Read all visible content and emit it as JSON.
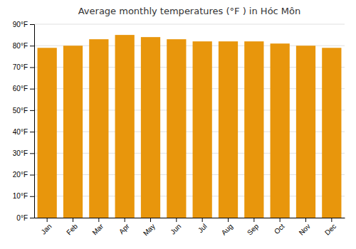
{
  "chart_data": {
    "type": "bar",
    "title": "Average monthly temperatures (°F ) in Hóc Môn",
    "categories": [
      "Jan",
      "Feb",
      "Mar",
      "Apr",
      "May",
      "Jun",
      "Jul",
      "Aug",
      "Sep",
      "Oct",
      "Nov",
      "Dec"
    ],
    "values": [
      79,
      80,
      83,
      85,
      84,
      83,
      82,
      82,
      82,
      81,
      80,
      79
    ],
    "color": "#E8960C",
    "ylim": [
      0,
      90
    ],
    "yticks": [
      {
        "value": 0,
        "label": "0°F"
      },
      {
        "value": 10,
        "label": "10°F"
      },
      {
        "value": 20,
        "label": "20°F"
      },
      {
        "value": 30,
        "label": "30°F"
      },
      {
        "value": 40,
        "label": "40°F"
      },
      {
        "value": 50,
        "label": "50°F"
      },
      {
        "value": 60,
        "label": "60°F"
      },
      {
        "value": 70,
        "label": "70°F"
      },
      {
        "value": 80,
        "label": "80°F"
      },
      {
        "value": 90,
        "label": "90°F"
      }
    ],
    "grid": true
  }
}
